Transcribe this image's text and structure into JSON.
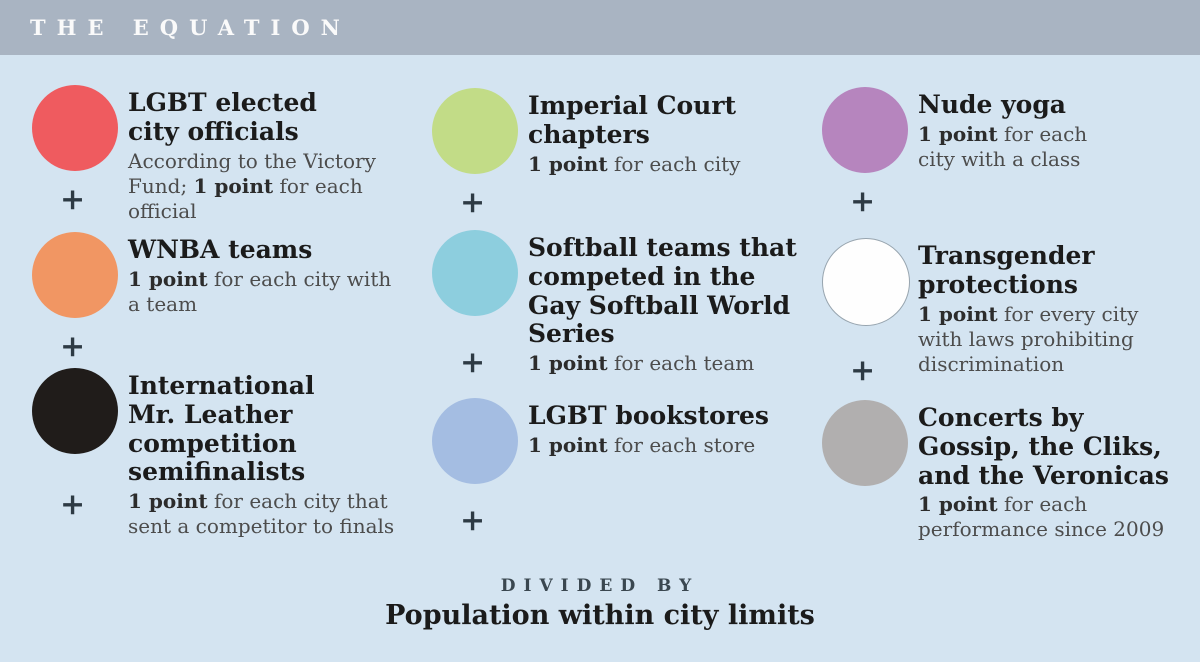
{
  "header": {
    "title": "THE EQUATION",
    "bar_color": "#a9b4c2"
  },
  "page": {
    "background_color": "#d4e4f1"
  },
  "equation": {
    "items": [
      {
        "id": "lgbt-elected-city-officials",
        "circle_color": "#ef5b5f",
        "circle_style": "background:#ef5b5f",
        "heading": "LGBT elected\ncity officials",
        "desc_pre": "According to the Victory\nFund; ",
        "desc_bold": "1 point",
        "desc_post": " for each official",
        "plus": "+"
      },
      {
        "id": "wnba-teams",
        "circle_color": "#f19663",
        "circle_style": "background:#f19663",
        "heading": "WNBA teams",
        "desc_pre": "",
        "desc_bold": "1 point",
        "desc_post": " for each city with\na team",
        "plus": "+"
      },
      {
        "id": "international-mr-leather",
        "circle_color": "#201c1a",
        "circle_style": "background:#201c1a",
        "heading": "International\nMr. Leather\ncompetition\nsemifinalists",
        "desc_pre": "",
        "desc_bold": "1 point",
        "desc_post": " for each city that\nsent a competitor to finals",
        "plus": "+"
      },
      {
        "id": "imperial-court-chapters",
        "circle_color": "#c2dc87",
        "circle_style": "background:#c2dc87",
        "heading": "Imperial Court\nchapters",
        "desc_pre": "",
        "desc_bold": "1 point",
        "desc_post": " for each city",
        "plus": "+"
      },
      {
        "id": "gay-softball-world-series",
        "circle_color": "#8dcede",
        "circle_style": "background:#8dcede",
        "heading": "Softball teams that\ncompeted in the\nGay Softball World\nSeries",
        "desc_pre": "",
        "desc_bold": "1 point",
        "desc_post": " for each team",
        "plus": "+"
      },
      {
        "id": "lgbt-bookstores",
        "circle_color": "#a4bde2",
        "circle_style": "background:#a4bde2",
        "heading": "LGBT bookstores",
        "desc_pre": "",
        "desc_bold": "1 point",
        "desc_post": " for each store",
        "plus": "+"
      },
      {
        "id": "nude-yoga",
        "circle_color": "#b685be",
        "circle_style": "background:#b685be",
        "heading": "Nude yoga",
        "desc_pre": "",
        "desc_bold": "1 point",
        "desc_post": " for each\ncity with a class",
        "plus": "+"
      },
      {
        "id": "transgender-protections",
        "circle_color": "#fefefe",
        "circle_style": "background:#fefefe;border:1px solid #97a4ae",
        "heading": "Transgender\nprotections",
        "desc_pre": "",
        "desc_bold": "1 point",
        "desc_post": " for every city\nwith laws prohibiting\ndiscrimination",
        "plus": "+"
      },
      {
        "id": "concerts-gossip-cliks-veronicas",
        "circle_color": "#b1afaf",
        "circle_style": "background:#b1afaf",
        "heading": "Concerts by\nGossip, the Cliks,\nand the Veronicas",
        "desc_pre": "",
        "desc_bold": "1 point",
        "desc_post": " for each\nperformance since 2009",
        "plus": ""
      }
    ],
    "divided_by_label": "DIVIDED BY",
    "denominator": "Population within city limits"
  }
}
